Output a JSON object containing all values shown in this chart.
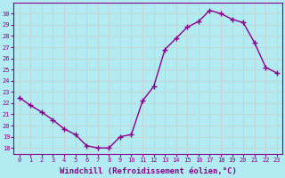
{
  "x": [
    0,
    1,
    2,
    3,
    4,
    5,
    6,
    7,
    8,
    9,
    10,
    11,
    12,
    13,
    14,
    15,
    16,
    17,
    18,
    19,
    20,
    21,
    22,
    23
  ],
  "y": [
    22.5,
    21.8,
    21.2,
    20.5,
    19.7,
    19.2,
    18.2,
    18.0,
    18.0,
    19.0,
    19.2,
    22.2,
    23.5,
    26.8,
    27.8,
    28.8,
    29.3,
    30.3,
    30.0,
    29.5,
    29.2,
    27.4,
    25.2,
    24.7
  ],
  "line_color": "#8B008B",
  "marker": "+",
  "markersize": 4,
  "linewidth": 1.0,
  "markeredgewidth": 1.0,
  "xlabel": "Windchill (Refroidissement éolien,°C)",
  "xlabel_fontsize": 6.5,
  "bg_color": "#b2ebf2",
  "grid_color": "#c0d8d8",
  "xlim": [
    -0.5,
    23.5
  ],
  "ylim": [
    17.5,
    31.0
  ],
  "yticks": [
    18,
    19,
    20,
    21,
    22,
    23,
    24,
    25,
    26,
    27,
    28,
    29,
    30
  ],
  "xtick_labels": [
    "0",
    "1",
    "2",
    "3",
    "4",
    "5",
    "6",
    "7",
    "8",
    "9",
    "10",
    "11",
    "12",
    "13",
    "14",
    "15",
    "16",
    "17",
    "18",
    "19",
    "20",
    "21",
    "22",
    "23"
  ],
  "tick_color": "#8B008B",
  "tick_fontsize": 5,
  "spine_color": "#8B008B"
}
